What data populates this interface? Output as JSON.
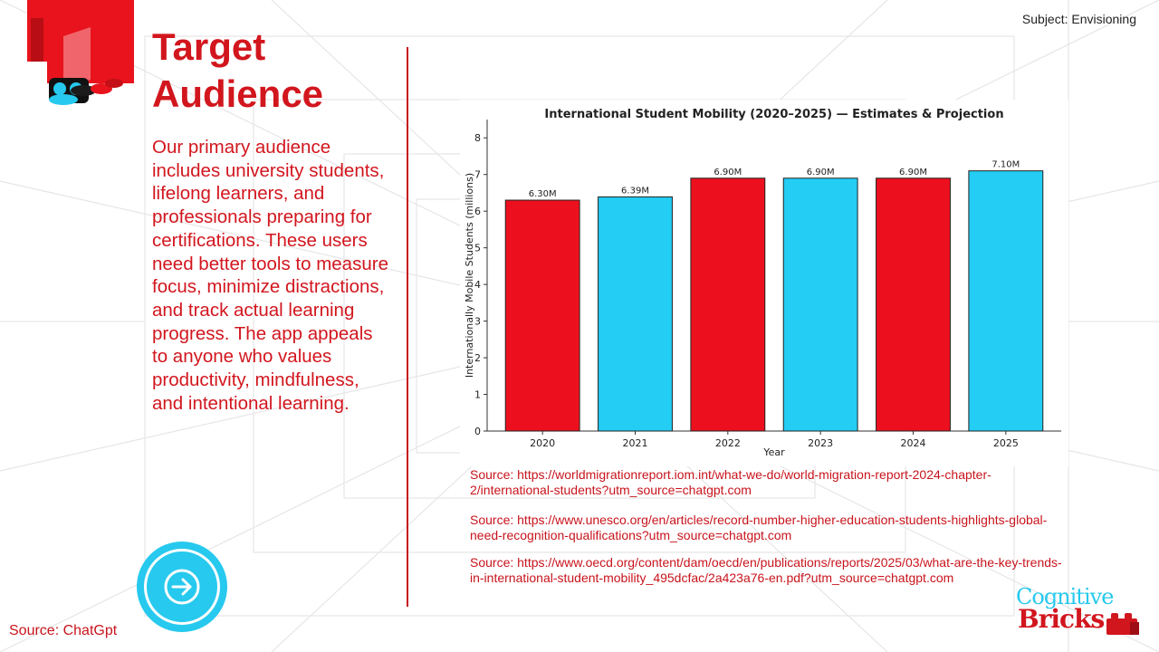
{
  "header": {
    "subject_label": "Subject:",
    "subject_value": "Envisioning"
  },
  "title": {
    "line1": "Target",
    "line2": "Audience"
  },
  "body": {
    "paragraph": "Our primary audience includes university students, lifelong learners, and professionals preparing for certifications. These users need better tools to measure focus, minimize distractions, and track actual learning progress. The app appeals to anyone who values productivity, mindfulness, and intentional learning."
  },
  "chart_data": {
    "type": "bar",
    "title": "International Student Mobility (2020–2025) — Estimates & Projection",
    "xlabel": "Year",
    "ylabel": "Internationally Mobile Students (millions)",
    "categories": [
      "2020",
      "2021",
      "2022",
      "2023",
      "2024",
      "2025"
    ],
    "values": [
      6.3,
      6.39,
      6.9,
      6.9,
      6.9,
      7.1
    ],
    "data_labels": [
      "6.30M",
      "6.39M",
      "6.90M",
      "6.90M",
      "6.90M",
      "7.10M"
    ],
    "bar_colors": [
      "#ec101e",
      "#23cdf4",
      "#ec101e",
      "#23cdf4",
      "#ec101e",
      "#23cdf4"
    ],
    "ylim": [
      0,
      8.5
    ],
    "yticks": [
      "0",
      "1",
      "2",
      "3",
      "4",
      "5",
      "6",
      "7",
      "8"
    ],
    "grid": false
  },
  "sources": [
    "Source: https://worldmigrationreport.iom.int/what-we-do/world-migration-report-2024-chapter-2/international-students?utm_source=chatgpt.com",
    "Source: https://www.unesco.org/en/articles/record-number-higher-education-students-highlights-global-need-recognition-qualifications?utm_source=chatgpt.com",
    "Source: https://www.oecd.org/content/dam/oecd/en/publications/reports/2025/03/what-are-the-key-trends-in-international-student-mobility_495dcfac/2a423a76-en.pdf?utm_source=chatgpt.com"
  ],
  "footer": {
    "source_label": "Source:",
    "source_value": "ChatGpt",
    "brand_word1": "Cognitive",
    "brand_word2": "Bricks"
  },
  "navigation": {
    "next_icon": "arrow-right-icon"
  },
  "colors": {
    "accent_red": "#d2161e",
    "accent_cyan": "#27c9ee"
  }
}
